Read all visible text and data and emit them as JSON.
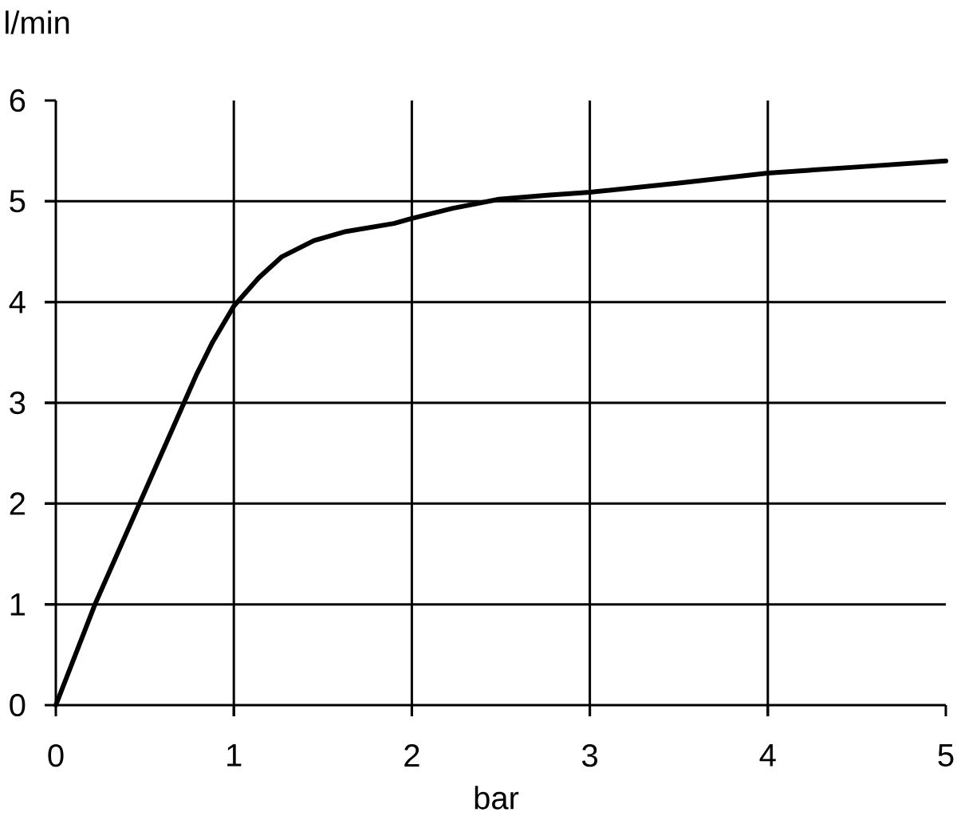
{
  "chart_data": {
    "type": "line",
    "xlabel": "bar",
    "ylabel": "l/min",
    "x": [
      0,
      0.22,
      0.47,
      0.72,
      0.79,
      0.88,
      1,
      1.14,
      1.27,
      1.45,
      1.63,
      1.9,
      2,
      2.23,
      2.49,
      2.76,
      3,
      3.5,
      4,
      4.5,
      5
    ],
    "values": [
      0,
      1,
      2,
      3,
      3.28,
      3.6,
      3.96,
      4.24,
      4.45,
      4.61,
      4.7,
      4.78,
      4.83,
      4.93,
      5.02,
      5.06,
      5.09,
      5.18,
      5.28,
      5.34,
      5.4
    ],
    "color": "#000000",
    "xlim": [
      0,
      5
    ],
    "ylim": [
      0,
      6
    ],
    "xticks": [
      0,
      1,
      2,
      3,
      4,
      5
    ],
    "yticks": [
      0,
      1,
      2,
      3,
      4,
      5,
      6
    ],
    "grid": true
  }
}
